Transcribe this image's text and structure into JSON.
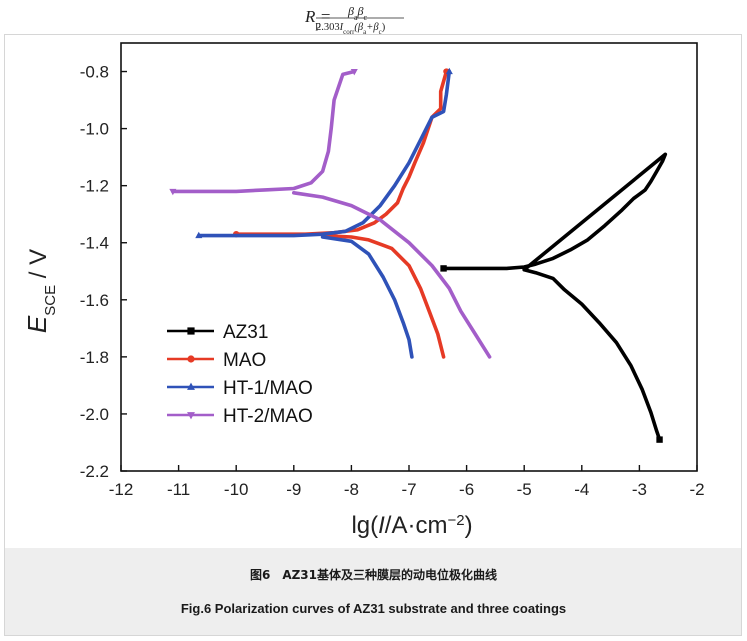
{
  "formula": {
    "lhs_symbol": "R",
    "lhs_subscript": "p",
    "numerator_a": "β",
    "numerator_a_sub": "a",
    "numerator_c": "β",
    "numerator_c_sub": "c",
    "denominator": "2.303",
    "denominator_I": "I",
    "denominator_I_sub": "corr",
    "denominator_paren_open": "(β",
    "denominator_paren_a_sub": "a",
    "denominator_plus": "+β",
    "denominator_paren_c_sub": "c",
    "denominator_paren_close": ")"
  },
  "caption": {
    "cn": "图6　AZ31基体及三种膜层的动电位极化曲线",
    "en": "Fig.6   Polarization curves of AZ31 substrate and three coatings"
  },
  "chart_data": {
    "type": "line",
    "title": "",
    "xlabel": "lg(I/A·cm⁻²)",
    "xlabel_parts": {
      "main": "lg(",
      "italic_I": "I",
      "unit": "/A·cm",
      "sup": "−2",
      "close": ")"
    },
    "ylabel_parts": {
      "symbol": "E",
      "subscript": "SCE",
      "unit": " / V"
    },
    "xlim": [
      -12,
      -2
    ],
    "ylim": [
      -2.2,
      -0.7
    ],
    "xticks": [
      -12,
      -11,
      -10,
      -9,
      -8,
      -7,
      -6,
      -5,
      -4,
      -3,
      -2
    ],
    "yticks": [
      -2.2,
      -2.0,
      -1.8,
      -1.6,
      -1.4,
      -1.2,
      -1.0,
      -0.8
    ],
    "xtick_labels": [
      "-12",
      "-11",
      "-10",
      "-9",
      "-8",
      "-7",
      "-6",
      "-5",
      "-4",
      "-3",
      "-2"
    ],
    "ytick_labels": [
      "-2.2",
      "-2.0",
      "-1.8",
      "-1.6",
      "-1.4",
      "-1.2",
      "-1.0",
      "-0.8"
    ],
    "legend_position": "bottom-left",
    "series": [
      {
        "name": "AZ31",
        "color": "#000000",
        "marker": "square",
        "points": [
          [
            -6.4,
            -1.49
          ],
          [
            -6.0,
            -1.49
          ],
          [
            -5.6,
            -1.49
          ],
          [
            -5.3,
            -1.49
          ],
          [
            -5.0,
            -1.485
          ],
          [
            -4.8,
            -1.475
          ],
          [
            -4.5,
            -1.455
          ],
          [
            -4.2,
            -1.425
          ],
          [
            -3.9,
            -1.39
          ],
          [
            -3.6,
            -1.34
          ],
          [
            -3.3,
            -1.285
          ],
          [
            -3.1,
            -1.245
          ],
          [
            -2.9,
            -1.215
          ],
          [
            -2.8,
            -1.185
          ],
          [
            -2.7,
            -1.15
          ],
          [
            -2.6,
            -1.115
          ],
          [
            -2.55,
            -1.09
          ],
          [
            -5.0,
            -1.495
          ],
          [
            -4.8,
            -1.505
          ],
          [
            -4.5,
            -1.525
          ],
          [
            -4.3,
            -1.565
          ],
          [
            -4.0,
            -1.615
          ],
          [
            -3.7,
            -1.68
          ],
          [
            -3.4,
            -1.75
          ],
          [
            -3.15,
            -1.83
          ],
          [
            -2.95,
            -1.915
          ],
          [
            -2.8,
            -1.995
          ],
          [
            -2.7,
            -2.06
          ],
          [
            -2.65,
            -2.09
          ]
        ]
      },
      {
        "name": "MAO",
        "color": "#e63a25",
        "marker": "circle",
        "points": [
          [
            -6.35,
            -0.8
          ],
          [
            -6.45,
            -0.87
          ],
          [
            -6.45,
            -0.93
          ],
          [
            -6.6,
            -0.96
          ],
          [
            -6.75,
            -1.05
          ],
          [
            -6.9,
            -1.12
          ],
          [
            -7.0,
            -1.17
          ],
          [
            -7.1,
            -1.21
          ],
          [
            -7.2,
            -1.26
          ],
          [
            -7.4,
            -1.3
          ],
          [
            -7.6,
            -1.33
          ],
          [
            -7.9,
            -1.355
          ],
          [
            -8.3,
            -1.365
          ],
          [
            -8.8,
            -1.37
          ],
          [
            -9.5,
            -1.37
          ],
          [
            -10.0,
            -1.37
          ],
          [
            -8.5,
            -1.375
          ],
          [
            -8.0,
            -1.38
          ],
          [
            -7.7,
            -1.39
          ],
          [
            -7.3,
            -1.42
          ],
          [
            -7.0,
            -1.48
          ],
          [
            -6.8,
            -1.56
          ],
          [
            -6.65,
            -1.64
          ],
          [
            -6.5,
            -1.72
          ],
          [
            -6.4,
            -1.8
          ]
        ]
      },
      {
        "name": "HT-1/MAO",
        "color": "#2f52b8",
        "marker": "triangle-up",
        "points": [
          [
            -6.3,
            -0.8
          ],
          [
            -6.35,
            -0.88
          ],
          [
            -6.4,
            -0.94
          ],
          [
            -6.6,
            -0.96
          ],
          [
            -6.8,
            -1.04
          ],
          [
            -7.0,
            -1.12
          ],
          [
            -7.25,
            -1.2
          ],
          [
            -7.5,
            -1.27
          ],
          [
            -7.8,
            -1.33
          ],
          [
            -8.1,
            -1.36
          ],
          [
            -8.5,
            -1.37
          ],
          [
            -9.0,
            -1.375
          ],
          [
            -10.0,
            -1.375
          ],
          [
            -10.65,
            -1.375
          ],
          [
            -8.5,
            -1.38
          ],
          [
            -8.0,
            -1.395
          ],
          [
            -7.7,
            -1.44
          ],
          [
            -7.45,
            -1.52
          ],
          [
            -7.25,
            -1.6
          ],
          [
            -7.1,
            -1.68
          ],
          [
            -7.0,
            -1.74
          ],
          [
            -6.95,
            -1.8
          ]
        ]
      },
      {
        "name": "HT-2/MAO",
        "color": "#a35ec9",
        "marker": "triangle-down",
        "points": [
          [
            -7.95,
            -0.8
          ],
          [
            -8.15,
            -0.81
          ],
          [
            -8.3,
            -0.9
          ],
          [
            -8.35,
            -1.0
          ],
          [
            -8.4,
            -1.08
          ],
          [
            -8.5,
            -1.15
          ],
          [
            -8.7,
            -1.19
          ],
          [
            -9.0,
            -1.21
          ],
          [
            -9.5,
            -1.215
          ],
          [
            -10.0,
            -1.22
          ],
          [
            -11.1,
            -1.22
          ],
          [
            -9.0,
            -1.225
          ],
          [
            -8.5,
            -1.24
          ],
          [
            -8.0,
            -1.27
          ],
          [
            -7.5,
            -1.32
          ],
          [
            -7.0,
            -1.4
          ],
          [
            -6.6,
            -1.48
          ],
          [
            -6.3,
            -1.56
          ],
          [
            -6.1,
            -1.64
          ],
          [
            -5.85,
            -1.72
          ],
          [
            -5.6,
            -1.8
          ]
        ]
      }
    ]
  }
}
